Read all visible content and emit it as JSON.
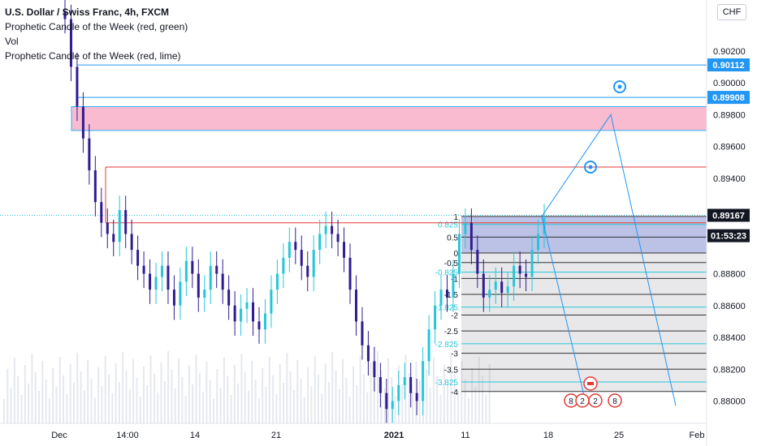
{
  "legend": {
    "title": "U.S. Dollar / Swiss Franc, 4h, FXCM",
    "line2": "Prophetic Candle of the Week (red, green)",
    "line3": "Vol",
    "line4": "Prophetic Candle of the Week (red, lime)"
  },
  "currency_badge": "CHF",
  "colors": {
    "up": "#26c6da",
    "down": "#311b92",
    "zone": "#f8bbd0",
    "line_blue": "#2196f3",
    "line_red": "#e53935"
  },
  "chart_data": {
    "type": "candlestick",
    "symbol": "USDCHF",
    "interval": "4h",
    "ylim": [
      0.8786,
      0.9052
    ],
    "y_ticks": [
      "0.90200",
      "0.90000",
      "0.89800",
      "0.89600",
      "0.89400",
      "0.88800",
      "0.88600",
      "0.88400",
      "0.88200",
      "0.88000"
    ],
    "x_ticks": [
      "Dec",
      "14:00",
      "14",
      "21",
      "2021",
      "11",
      "18",
      "25",
      "Feb"
    ],
    "price_labels": [
      {
        "value": 0.90112,
        "text": "0.90112"
      },
      {
        "value": 0.89908,
        "text": "0.89908"
      },
      {
        "value": 0.89167,
        "text": "0.89167"
      },
      {
        "value": 0.891,
        "text": "01:53:23"
      }
    ],
    "fib_levels": [
      {
        "label": "1",
        "value": 0.8916
      },
      {
        "label": "0.825",
        "value": 0.8911
      },
      {
        "label": "0.5",
        "value": 0.8903
      },
      {
        "label": "0",
        "value": 0.8893
      },
      {
        "label": "-0.5",
        "value": 0.8887
      },
      {
        "label": "-0.825",
        "value": 0.8881
      },
      {
        "label": "-1",
        "value": 0.8877
      },
      {
        "label": "-1.5",
        "value": 0.8867
      },
      {
        "label": "-1.825",
        "value": 0.8859
      },
      {
        "label": "-2",
        "value": 0.8854
      },
      {
        "label": "-2.5",
        "value": 0.8844
      },
      {
        "label": "-2.825",
        "value": 0.8836
      },
      {
        "label": "-3",
        "value": 0.883
      },
      {
        "label": "-3.5",
        "value": 0.882
      },
      {
        "label": "-3.825",
        "value": 0.8812
      },
      {
        "label": "-4",
        "value": 0.8806
      }
    ],
    "zone": {
      "top": 0.8985,
      "bottom": 0.897
    },
    "horizontal_lines": [
      {
        "value": 0.90112,
        "color": "blue"
      },
      {
        "value": 0.89908,
        "color": "blue"
      },
      {
        "value": 0.8947,
        "color": "red"
      },
      {
        "value": 0.8912,
        "color": "red"
      }
    ],
    "projection_path": [
      [
        0.8916,
        0.898
      ],
      [
        0.898,
        0.8797
      ]
    ],
    "close": [
      0.904,
      0.901,
      0.8985,
      0.8965,
      0.8945,
      0.8925,
      0.8912,
      0.8905,
      0.89,
      0.892,
      0.8905,
      0.8895,
      0.8885,
      0.888,
      0.887,
      0.8878,
      0.8885,
      0.887,
      0.886,
      0.8875,
      0.8888,
      0.888,
      0.8865,
      0.887,
      0.8885,
      0.888,
      0.887,
      0.886,
      0.885,
      0.8858,
      0.8862,
      0.885,
      0.8845,
      0.8855,
      0.887,
      0.888,
      0.889,
      0.89,
      0.8895,
      0.8885,
      0.8878,
      0.8895,
      0.8905,
      0.891,
      0.8905,
      0.89,
      0.889,
      0.887,
      0.885,
      0.8835,
      0.8825,
      0.8815,
      0.8805,
      0.8795,
      0.88,
      0.881,
      0.8815,
      0.8805,
      0.88,
      0.8825,
      0.8845,
      0.886,
      0.887,
      0.8865,
      0.888,
      0.8905,
      0.8912,
      0.8895,
      0.888,
      0.8865,
      0.887,
      0.8875,
      0.8868,
      0.8872,
      0.8885,
      0.888,
      0.8878,
      0.8895,
      0.8905,
      0.8915
    ]
  },
  "annotations": {
    "flags": [
      "8",
      "2",
      "2",
      "8"
    ]
  }
}
